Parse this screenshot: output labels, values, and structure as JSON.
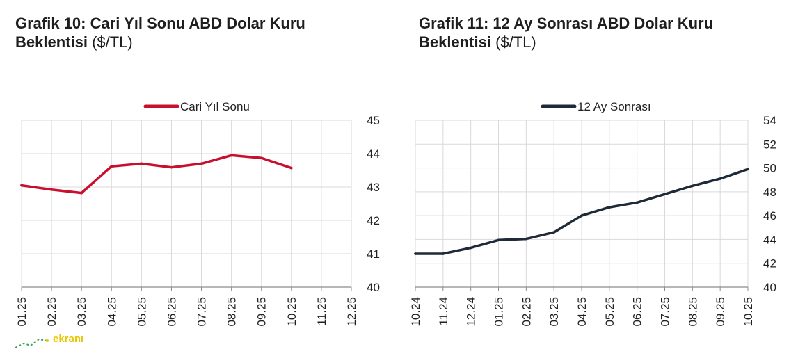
{
  "charts": [
    {
      "title_bold": "Grafik 10: Cari Yıl Sonu ABD Dolar Kuru",
      "title_bold2": "Beklentisi",
      "title_unit": "($/TL)",
      "color": "#c8102e",
      "chart_data": {
        "type": "line",
        "title": "Grafik 10: Cari Yıl Sonu ABD Dolar Kuru Beklentisi ($/TL)",
        "categories": [
          "01.25",
          "02.25",
          "03.25",
          "04.25",
          "05.25",
          "06.25",
          "07.25",
          "08.25",
          "09.25",
          "10.25",
          "11.25",
          "12.25"
        ],
        "series": [
          {
            "name": "Cari Yıl Sonu",
            "values": [
              43.05,
              42.92,
              42.82,
              43.62,
              43.7,
              43.59,
              43.7,
              43.95,
              43.87,
              43.57,
              null,
              null
            ]
          }
        ],
        "ylim": [
          40,
          45
        ],
        "yticks": [
          "40",
          "41",
          "42",
          "43",
          "44",
          "45"
        ],
        "y_axis_side": "right",
        "grid": true,
        "legend": "top-center"
      }
    },
    {
      "title_bold": "Grafik 11: 12 Ay Sonrası ABD Dolar Kuru",
      "title_bold2": "Beklentisi",
      "title_unit": "($/TL)",
      "color": "#1f2a38",
      "chart_data": {
        "type": "line",
        "title": "Grafik 11: 12 Ay Sonrası ABD Dolar Kuru Beklentisi ($/TL)",
        "categories": [
          "10.24",
          "11.24",
          "12.24",
          "01.25",
          "02.25",
          "03.25",
          "04.25",
          "05.25",
          "06.25",
          "07.25",
          "08.25",
          "09.25",
          "10.25"
        ],
        "series": [
          {
            "name": "12 Ay Sonrası",
            "values": [
              42.8,
              42.8,
              43.3,
              43.95,
              44.05,
              44.6,
              46.0,
              46.7,
              47.1,
              47.8,
              48.5,
              49.1,
              49.9
            ]
          }
        ],
        "ylim": [
          40,
          54
        ],
        "yticks": [
          "40",
          "42",
          "44",
          "46",
          "48",
          "50",
          "52",
          "54"
        ],
        "y_axis_side": "right",
        "grid": true,
        "legend": "top-center"
      }
    }
  ],
  "watermark": {
    "text": "ekranı",
    "color": "#e8c700"
  }
}
